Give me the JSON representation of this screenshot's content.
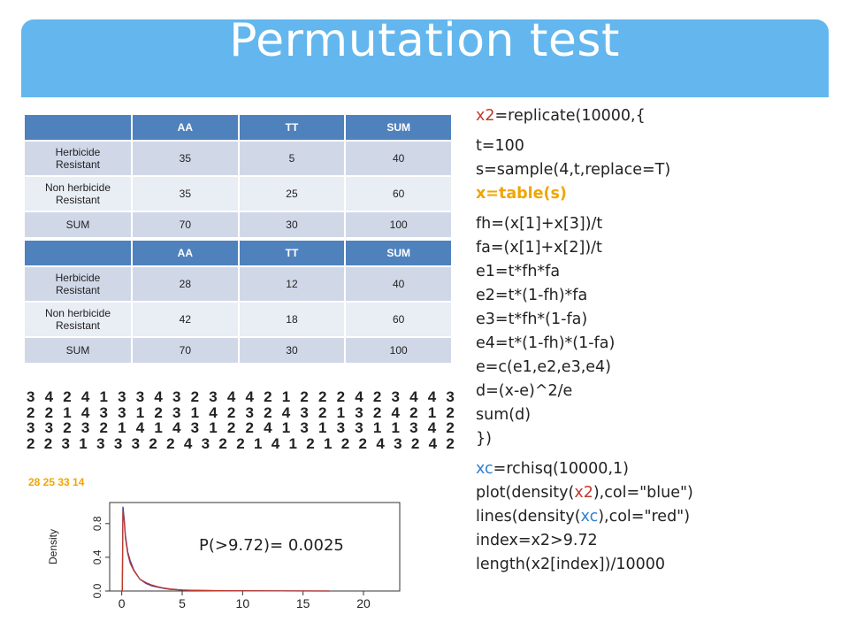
{
  "title": "Permutation test",
  "table1": {
    "headers": [
      "",
      "AA",
      "TT",
      "SUM"
    ],
    "rows": [
      [
        "Herbicide\nResistant",
        "35",
        "5",
        "40"
      ],
      [
        "Non herbicide\nResistant",
        "35",
        "25",
        "60"
      ],
      [
        "SUM",
        "70",
        "30",
        "100"
      ]
    ]
  },
  "table2": {
    "headers": [
      "",
      "AA",
      "TT",
      "SUM"
    ],
    "rows": [
      [
        "Herbicide\nResistant",
        "28",
        "12",
        "40"
      ],
      [
        "Non herbicide\nResistant",
        "42",
        "18",
        "60"
      ],
      [
        "SUM",
        "70",
        "30",
        "100"
      ]
    ]
  },
  "digit_rows": [
    "3 4 2 4 1 3 3 4 3 2 3 4 4 2 1 2 2 2 4 2 3 4 4 3",
    "2 2 1 4 3 3 1 2 3 1 4 2 3 2 4 3 2 1 3 2 4 2 1 2",
    "3 3 2 3 2 1 4 1 4 3 1 2 2 4 1 3 1 3 3 1 1 3 4 2",
    "2 2 3 1 3 3 3 2 2 4 3 2 2 1 4 1 2 1 2 2 4 3 2 4 2"
  ],
  "counts": "28 25 33 14",
  "code": {
    "l1_var": "x2",
    "l1_rest": "=replicate(10000,{",
    "l2": "t=100",
    "l3": "s=sample(4,t,replace=T)",
    "l4": "x=table(s)",
    "l5": "fh=(x[1]+x[3])/t",
    "l6": "fa=(x[1]+x[2])/t",
    "l7": "e1=t*fh*fa",
    "l8": "e2=t*(1-fh)*fa",
    "l9": "e3=t*fh*(1-fa)",
    "l10": "e4=t*(1-fh)*(1-fa)",
    "l11": "e=c(e1,e2,e3,e4)",
    "l12": "d=(x-e)^2/e",
    "l13": "sum(d)",
    "l14": "})",
    "l15_var": "xc",
    "l15_rest": "=rchisq(10000,1)",
    "l16_a": "plot(density(",
    "l16_var": "x2",
    "l16_b": "),col=\"blue\")",
    "l17_a": "lines(density(",
    "l17_var": "xc",
    "l17_b": "),col=\"red\")",
    "l18": "index=x2>9.72",
    "l19": "length(x2[index])/10000"
  },
  "p_value_label": "P(>9.72)= 0.0025",
  "chart_data": {
    "type": "line",
    "ylabel": "Density",
    "xlabel": "",
    "x_ticks": [
      "0",
      "5",
      "10",
      "15",
      "20"
    ],
    "y_ticks": [
      "0.0",
      "0.4",
      "0.8"
    ],
    "xlim": [
      -1,
      23
    ],
    "ylim": [
      0,
      1.05
    ],
    "series": [
      {
        "color": "#3a3aa0",
        "x": [
          0.05,
          0.1,
          0.2,
          0.3,
          0.5,
          0.7,
          1.0,
          1.5,
          2.0,
          2.5,
          3.0,
          3.5,
          4.0,
          5.0,
          6.0,
          8.0,
          10.0,
          13.0,
          17.2
        ],
        "y": [
          0.0,
          1.0,
          0.86,
          0.66,
          0.46,
          0.36,
          0.25,
          0.14,
          0.09,
          0.06,
          0.045,
          0.03,
          0.02,
          0.012,
          0.007,
          0.003,
          0.002,
          0.001,
          0.0
        ]
      },
      {
        "color": "#c0392b",
        "x": [
          0.05,
          0.1,
          0.2,
          0.3,
          0.5,
          0.7,
          1.0,
          1.5,
          2.0,
          2.5,
          3.0,
          3.5,
          4.0,
          5.0,
          6.0,
          8.0,
          10.0,
          13.0,
          17.2
        ],
        "y": [
          0.0,
          0.95,
          0.83,
          0.63,
          0.44,
          0.33,
          0.24,
          0.14,
          0.1,
          0.07,
          0.05,
          0.035,
          0.025,
          0.012,
          0.007,
          0.003,
          0.002,
          0.001,
          0.0
        ]
      }
    ]
  }
}
